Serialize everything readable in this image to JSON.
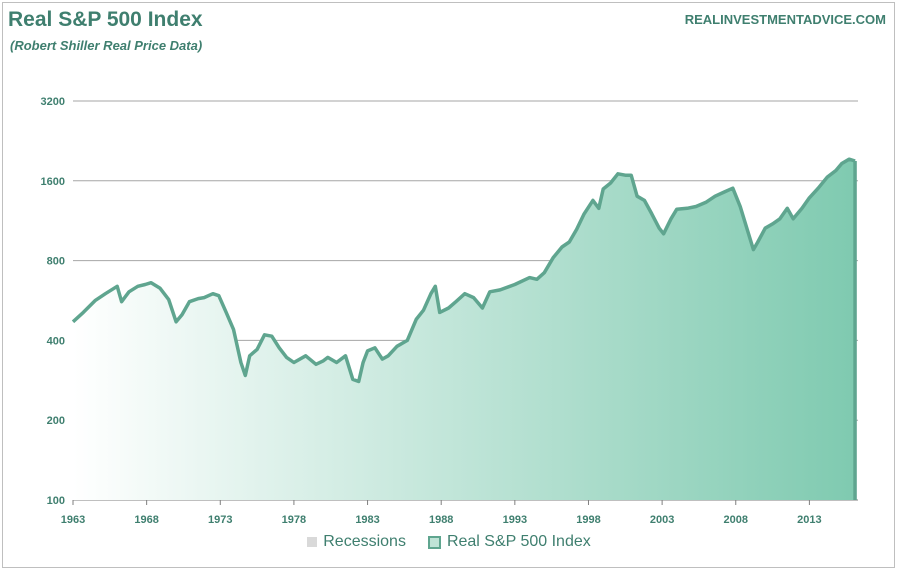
{
  "header": {
    "title": "Real S&P 500 Index",
    "subtitle": "(Robert Shiller Real Price Data)",
    "source": "REALINVESTMENTADVICE.COM"
  },
  "colors": {
    "line": "#5fa58f",
    "text": "#3f7f6f",
    "grid": "#a6a6a6",
    "fill_light": "#ffffff",
    "fill_dark": "#7fcab0"
  },
  "chart_data": {
    "type": "area",
    "yscale": "log2",
    "ylim": [
      100,
      3200
    ],
    "yticks": [
      100,
      200,
      400,
      800,
      1600,
      3200
    ],
    "xlim": [
      1963,
      2016.3
    ],
    "xticks": [
      1963,
      1968,
      1973,
      1978,
      1983,
      1988,
      1993,
      1998,
      2003,
      2008,
      2013
    ],
    "grid": true,
    "legend_position": "bottom",
    "legend": [
      "Recessions",
      "Real S&P 500 Index"
    ],
    "series": [
      {
        "name": "Real S&P 500 Index",
        "x": [
          1963.0,
          1963.7,
          1964.5,
          1965.2,
          1966.0,
          1966.3,
          1966.8,
          1967.4,
          1967.9,
          1968.3,
          1968.9,
          1969.5,
          1970.0,
          1970.4,
          1970.9,
          1971.5,
          1971.9,
          1972.5,
          1972.9,
          1973.4,
          1973.9,
          1974.4,
          1974.7,
          1975.0,
          1975.5,
          1976.0,
          1976.5,
          1977.0,
          1977.5,
          1978.0,
          1978.8,
          1979.5,
          1980.0,
          1980.3,
          1980.9,
          1981.5,
          1982.0,
          1982.4,
          1982.7,
          1983.0,
          1983.5,
          1984.0,
          1984.4,
          1985.0,
          1985.7,
          1986.3,
          1986.8,
          1987.3,
          1987.6,
          1987.9,
          1988.5,
          1989.0,
          1989.6,
          1990.2,
          1990.8,
          1991.3,
          1992.0,
          1993.0,
          1994.0,
          1994.5,
          1995.0,
          1995.6,
          1996.2,
          1996.7,
          1997.2,
          1997.7,
          1998.3,
          1998.7,
          1999.0,
          1999.5,
          2000.0,
          2000.5,
          2000.9,
          2001.3,
          2001.8,
          2002.3,
          2002.8,
          2003.1,
          2003.6,
          2004.0,
          2004.7,
          2005.3,
          2006.0,
          2006.6,
          2007.2,
          2007.8,
          2008.3,
          2008.8,
          2009.2,
          2009.5,
          2010.0,
          2010.5,
          2011.0,
          2011.5,
          2011.9,
          2012.5,
          2013.0,
          2013.6,
          2014.2,
          2014.8,
          2015.2,
          2015.7,
          2016.1
        ],
        "values": [
          470,
          510,
          565,
          600,
          640,
          560,
          610,
          640,
          650,
          660,
          630,
          570,
          470,
          500,
          560,
          575,
          580,
          600,
          590,
          510,
          440,
          330,
          295,
          350,
          370,
          420,
          415,
          375,
          345,
          330,
          350,
          325,
          335,
          345,
          330,
          350,
          285,
          280,
          330,
          365,
          375,
          340,
          350,
          380,
          400,
          480,
          520,
          600,
          640,
          510,
          530,
          560,
          600,
          580,
          530,
          610,
          620,
          650,
          690,
          680,
          720,
          820,
          900,
          940,
          1050,
          1200,
          1350,
          1260,
          1490,
          1570,
          1700,
          1680,
          1680,
          1400,
          1350,
          1200,
          1060,
          1010,
          1150,
          1250,
          1260,
          1280,
          1330,
          1400,
          1450,
          1500,
          1280,
          1040,
          880,
          940,
          1060,
          1100,
          1150,
          1260,
          1150,
          1260,
          1380,
          1500,
          1650,
          1750,
          1860,
          1930,
          1900
        ]
      }
    ]
  }
}
